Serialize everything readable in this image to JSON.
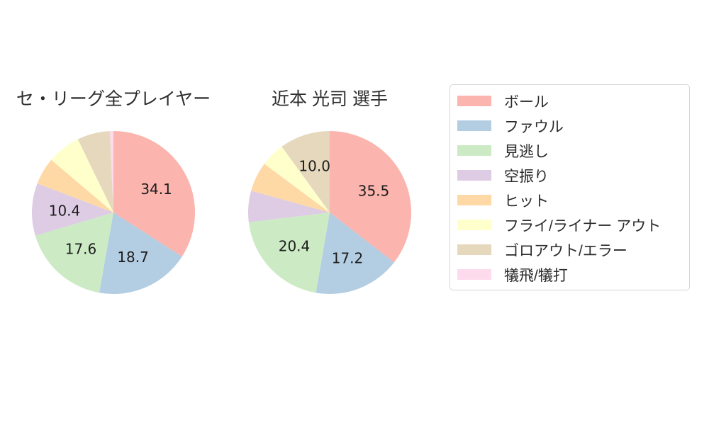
{
  "figure": {
    "background": "#ffffff",
    "text_color": "#2e2e2e"
  },
  "palette": {
    "ball": "#fbb4ae",
    "foul": "#b3cde3",
    "looking": "#ccebc5",
    "swing_miss": "#decbe4",
    "hit": "#fed9a6",
    "fly_liner_out": "#ffffcc",
    "groundout_error": "#e5d8bd",
    "sacrifice": "#fddaec"
  },
  "legend": {
    "border_color": "#d5d5d5",
    "items": [
      {
        "label": "ボール",
        "color": "#fbb4ae"
      },
      {
        "label": "ファウル",
        "color": "#b3cde3"
      },
      {
        "label": "見逃し",
        "color": "#ccebc5"
      },
      {
        "label": "空振り",
        "color": "#decbe4"
      },
      {
        "label": "ヒット",
        "color": "#fed9a6"
      },
      {
        "label": "フライ/ライナー アウト",
        "color": "#ffffcc"
      },
      {
        "label": "ゴロアウト/エラー",
        "color": "#e5d8bd"
      },
      {
        "label": "犠飛/犠打",
        "color": "#fddaec"
      }
    ]
  },
  "chart_data": [
    {
      "type": "pie",
      "title": "セ・リーグ全プレイヤー",
      "unit": "percent",
      "start_angle_deg_from_top": 0,
      "direction": "clockwise",
      "label_distance_ratio": 0.6,
      "label_min_value": 10,
      "label_decimals": 1,
      "radius_px": 115,
      "categories": [
        "ボール",
        "ファウル",
        "見逃し",
        "空振り",
        "ヒット",
        "フライ/ライナー アウト",
        "ゴロアウト/エラー",
        "犠飛/犠打"
      ],
      "values": [
        34.1,
        18.7,
        17.6,
        10.4,
        5.4,
        6.6,
        6.5,
        0.7
      ],
      "shown_labels": [
        "34.1",
        "18.7",
        "17.6",
        "10.4"
      ],
      "colors": [
        "#fbb4ae",
        "#b3cde3",
        "#ccebc5",
        "#decbe4",
        "#fed9a6",
        "#ffffcc",
        "#e5d8bd",
        "#fddaec"
      ]
    },
    {
      "type": "pie",
      "title": "近本 光司  選手",
      "unit": "percent",
      "start_angle_deg_from_top": 0,
      "direction": "clockwise",
      "label_distance_ratio": 0.6,
      "label_min_value": 10,
      "label_decimals": 1,
      "radius_px": 115,
      "categories": [
        "ボール",
        "ファウル",
        "見逃し",
        "空振り",
        "ヒット",
        "フライ/ライナー アウト",
        "ゴロアウト/エラー",
        "犠飛/犠打"
      ],
      "values": [
        35.5,
        17.2,
        20.4,
        6.2,
        5.9,
        4.8,
        10.0,
        0.0
      ],
      "shown_labels": [
        "35.5",
        "17.2",
        "20.4",
        "10.0"
      ],
      "colors": [
        "#fbb4ae",
        "#b3cde3",
        "#ccebc5",
        "#decbe4",
        "#fed9a6",
        "#ffffcc",
        "#e5d8bd",
        "#fddaec"
      ]
    }
  ]
}
